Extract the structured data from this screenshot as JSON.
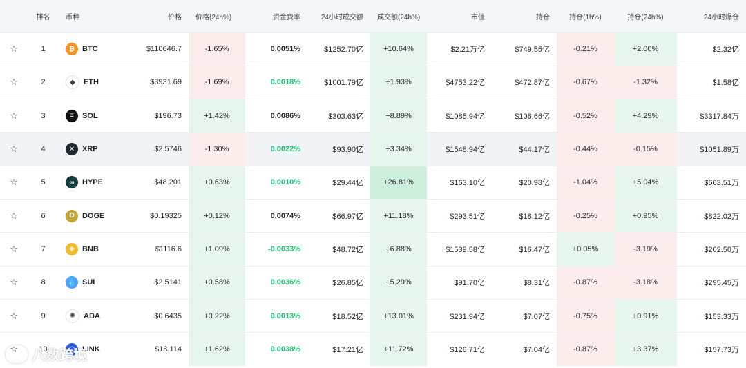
{
  "header": {
    "rank": "排名",
    "coin": "币种",
    "price": "价格",
    "price_change": "价格(24h%)",
    "funding_rate": "资金费率",
    "volume": "24小时成交额",
    "volume_change": "成交额(24h%)",
    "market_cap": "市值",
    "open_interest": "持仓",
    "oi_1h": "持仓(1h%)",
    "oi_24h": "持仓(24h%)",
    "liquidation": "24小时爆仓"
  },
  "colors": {
    "positive": "#1fbf75",
    "negative_bg": "#fdecec",
    "positive_bg": "#e6f6ec"
  },
  "rows": [
    {
      "star": "☆",
      "rank": "1",
      "symbol": "BTC",
      "icon": "bitcoin-icon",
      "icon_glyph": "₿",
      "icon_color": "#f7931a",
      "price": "$110646.7",
      "price_change": "-1.65%",
      "funding": "0.0051%",
      "volume": "$1252.70亿",
      "volume_change": "+10.64%",
      "mcap": "$2.21万亿",
      "oi": "$749.55亿",
      "oi1h": "-0.21%",
      "oi24h": "+2.00%",
      "liq": "$2.32亿"
    },
    {
      "star": "☆",
      "rank": "2",
      "symbol": "ETH",
      "icon": "ethereum-icon",
      "icon_glyph": "◆",
      "icon_color": "#ffffff",
      "price": "$3931.69",
      "price_change": "-1.69%",
      "funding": "0.0018%",
      "volume": "$1001.79亿",
      "volume_change": "+1.93%",
      "mcap": "$4753.22亿",
      "oi": "$472.87亿",
      "oi1h": "-0.67%",
      "oi24h": "-1.32%",
      "liq": "$1.58亿"
    },
    {
      "star": "☆",
      "rank": "3",
      "symbol": "SOL",
      "icon": "solana-icon",
      "icon_glyph": "≡",
      "icon_color": "#111111",
      "price": "$196.73",
      "price_change": "+1.42%",
      "funding": "0.0086%",
      "volume": "$303.63亿",
      "volume_change": "+8.89%",
      "mcap": "$1085.94亿",
      "oi": "$106.66亿",
      "oi1h": "-0.52%",
      "oi24h": "+4.29%",
      "liq": "$3317.84万"
    },
    {
      "star": "☆",
      "rank": "4",
      "symbol": "XRP",
      "icon": "xrp-icon",
      "icon_glyph": "✕",
      "icon_color": "#23292f",
      "price": "$2.5746",
      "price_change": "-1.30%",
      "funding": "0.0022%",
      "volume": "$93.90亿",
      "volume_change": "+3.34%",
      "mcap": "$1548.94亿",
      "oi": "$44.17亿",
      "oi1h": "-0.44%",
      "oi24h": "-0.15%",
      "liq": "$1051.89万"
    },
    {
      "star": "☆",
      "rank": "5",
      "symbol": "HYPE",
      "icon": "hyperliquid-icon",
      "icon_glyph": "∞",
      "icon_color": "#0f3b3a",
      "price": "$48.201",
      "price_change": "+0.63%",
      "funding": "0.0010%",
      "volume": "$29.44亿",
      "volume_change": "+26.81%",
      "mcap": "$163.10亿",
      "oi": "$20.98亿",
      "oi1h": "-1.04%",
      "oi24h": "+5.04%",
      "liq": "$603.51万"
    },
    {
      "star": "☆",
      "rank": "6",
      "symbol": "DOGE",
      "icon": "dogecoin-icon",
      "icon_glyph": "Ð",
      "icon_color": "#c2a633",
      "price": "$0.19325",
      "price_change": "+0.12%",
      "funding": "0.0074%",
      "volume": "$66.97亿",
      "volume_change": "+11.18%",
      "mcap": "$293.51亿",
      "oi": "$18.12亿",
      "oi1h": "-0.25%",
      "oi24h": "+0.95%",
      "liq": "$822.02万"
    },
    {
      "star": "☆",
      "rank": "7",
      "symbol": "BNB",
      "icon": "bnb-icon",
      "icon_glyph": "◈",
      "icon_color": "#f3ba2f",
      "price": "$1116.6",
      "price_change": "+1.09%",
      "funding": "-0.0033%",
      "volume": "$48.72亿",
      "volume_change": "+6.88%",
      "mcap": "$1539.58亿",
      "oi": "$16.47亿",
      "oi1h": "+0.05%",
      "oi24h": "-3.19%",
      "liq": "$202.50万"
    },
    {
      "star": "☆",
      "rank": "8",
      "symbol": "SUI",
      "icon": "sui-icon",
      "icon_glyph": "💧",
      "icon_color": "#4da2ff",
      "price": "$2.5141",
      "price_change": "+0.58%",
      "funding": "0.0036%",
      "volume": "$26.85亿",
      "volume_change": "+5.29%",
      "mcap": "$91.70亿",
      "oi": "$8.31亿",
      "oi1h": "-0.87%",
      "oi24h": "-3.18%",
      "liq": "$295.45万"
    },
    {
      "star": "☆",
      "rank": "9",
      "symbol": "ADA",
      "icon": "cardano-icon",
      "icon_glyph": "✺",
      "icon_color": "#ffffff",
      "price": "$0.6435",
      "price_change": "+0.22%",
      "funding": "0.0013%",
      "volume": "$18.52亿",
      "volume_change": "+13.01%",
      "mcap": "$231.94亿",
      "oi": "$7.07亿",
      "oi1h": "-0.75%",
      "oi24h": "+0.91%",
      "liq": "$153.33万"
    },
    {
      "star": "☆",
      "rank": "10",
      "symbol": "LINK",
      "icon": "chainlink-icon",
      "icon_glyph": "⬡",
      "icon_color": "#2a5ada",
      "price": "$18.114",
      "price_change": "+1.62%",
      "funding": "0.0038%",
      "volume": "$17.21亿",
      "volume_change": "+11.72%",
      "mcap": "$126.71亿",
      "oi": "$7.04亿",
      "oi1h": "-0.87%",
      "oi24h": "+3.37%",
      "liq": "$157.73万"
    }
  ],
  "watermark": "八数跨境"
}
